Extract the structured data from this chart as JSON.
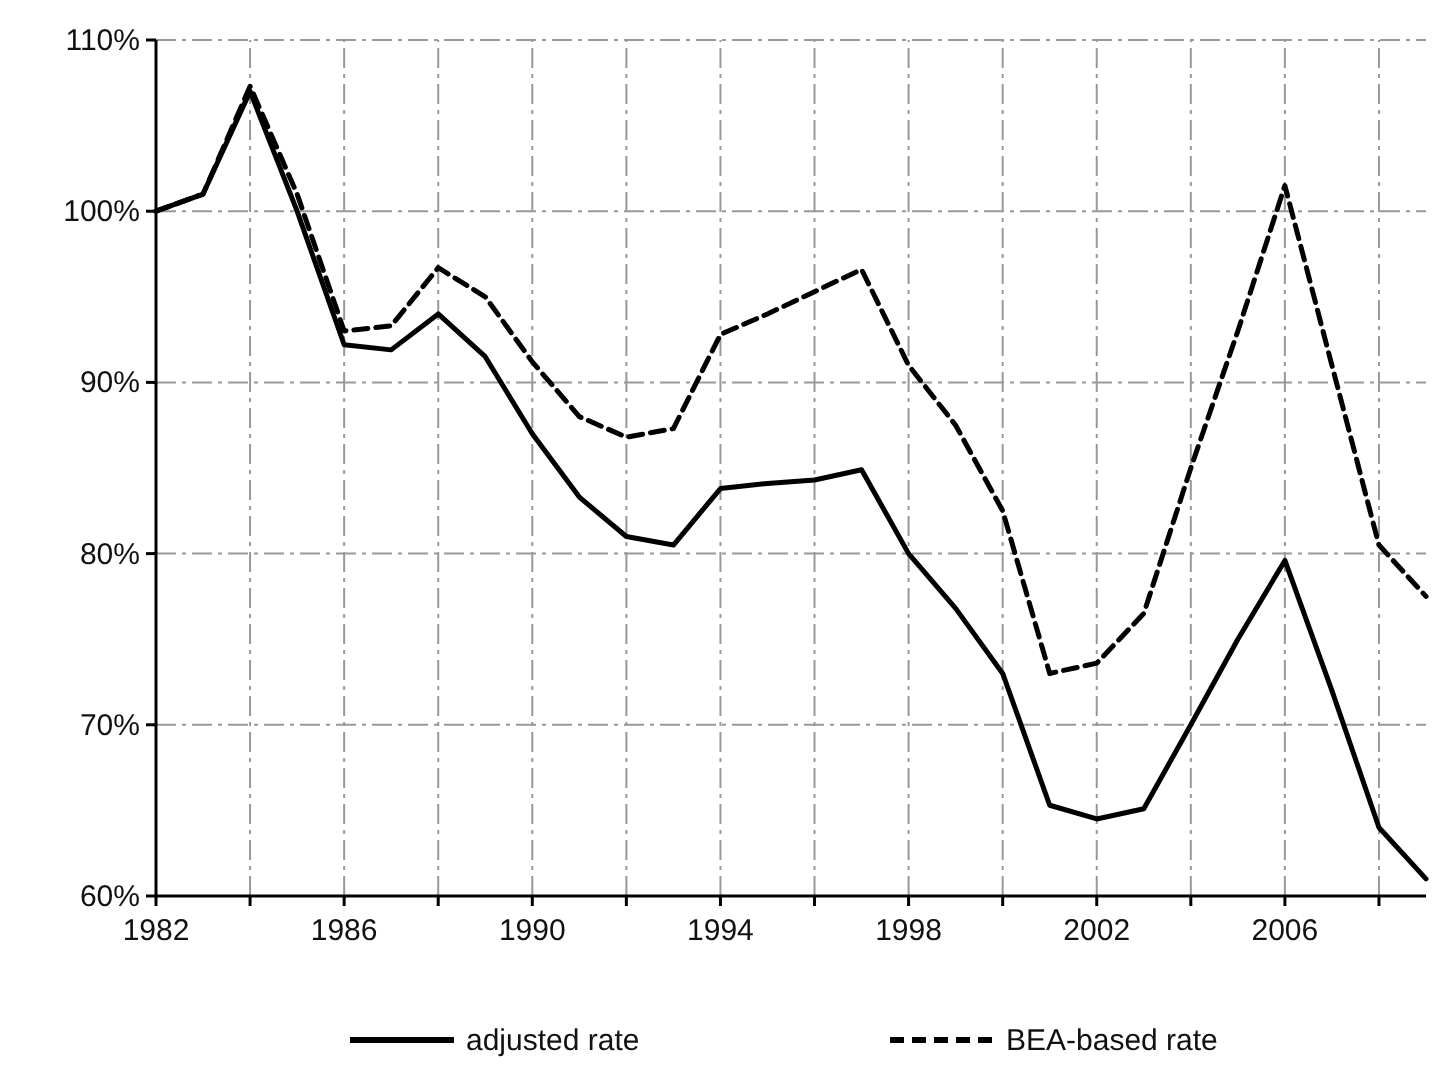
{
  "chart_data": {
    "type": "line",
    "x": [
      1982,
      1983,
      1984,
      1985,
      1986,
      1987,
      1988,
      1989,
      1990,
      1991,
      1992,
      1993,
      1994,
      1995,
      1996,
      1997,
      1998,
      1999,
      2000,
      2001,
      2002,
      2003,
      2004,
      2005,
      2006,
      2007,
      2008,
      2009
    ],
    "series": [
      {
        "name": "adjusted rate",
        "color": "#000000",
        "line_style": "solid",
        "values": [
          100,
          101,
          107,
          100,
          92.2,
          91.9,
          94,
          91.5,
          87,
          83.3,
          81,
          80.5,
          83.8,
          84.1,
          84.3,
          84.9,
          80,
          76.8,
          73,
          65.3,
          64.5,
          65.1,
          70,
          75,
          79.6,
          72,
          64,
          61
        ]
      },
      {
        "name": "BEA-based rate",
        "color": "#000000",
        "line_style": "dashed",
        "values": [
          100,
          101,
          107.3,
          101,
          93,
          93.3,
          96.7,
          95,
          91.2,
          88,
          86.8,
          87.3,
          92.8,
          94,
          95.3,
          96.6,
          91,
          87.5,
          82.5,
          73,
          73.6,
          76.5,
          85,
          93,
          101.5,
          91,
          80.5,
          77.5
        ]
      }
    ],
    "xlim": [
      1982,
      2009
    ],
    "xticks": [
      1982,
      {
        "value": 1984,
        "label": null
      },
      1986,
      {
        "value": 1988,
        "label": null
      },
      1990,
      {
        "value": 1992,
        "label": null
      },
      1994,
      {
        "value": 1996,
        "label": null
      },
      1998,
      {
        "value": 2000,
        "label": null
      },
      2002,
      {
        "value": 2004,
        "label": null
      },
      2006,
      {
        "value": 2008,
        "label": null
      }
    ],
    "ylim": [
      60,
      110
    ],
    "yticks": [
      {
        "value": 60,
        "label": "60%"
      },
      {
        "value": 70,
        "label": "70%"
      },
      {
        "value": 80,
        "label": "80%"
      },
      {
        "value": 90,
        "label": "90%"
      },
      {
        "value": 100,
        "label": "100%"
      },
      {
        "value": 110,
        "label": "110%"
      }
    ],
    "grid": true,
    "legend": "bottom",
    "marker": "none"
  }
}
